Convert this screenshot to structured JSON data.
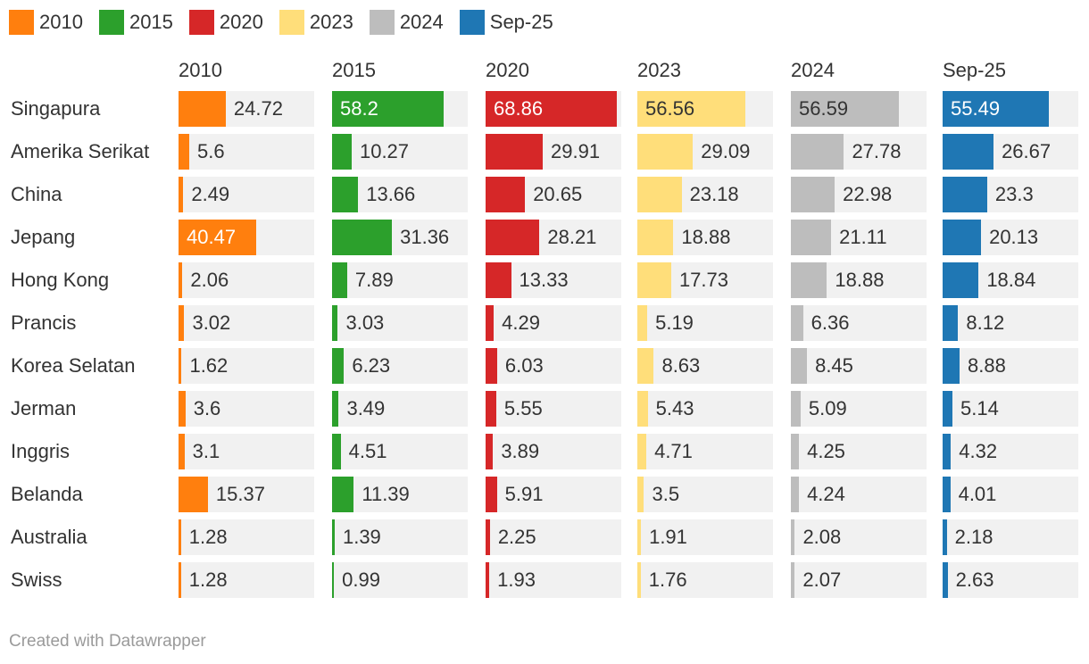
{
  "legend": [
    {
      "label": "2010",
      "color": "#ff7f0e"
    },
    {
      "label": "2015",
      "color": "#2ca02c"
    },
    {
      "label": "2020",
      "color": "#d62728"
    },
    {
      "label": "2023",
      "color": "#ffde7a"
    },
    {
      "label": "2024",
      "color": "#bdbdbd"
    },
    {
      "label": "Sep-25",
      "color": "#1f77b4"
    }
  ],
  "footer": {
    "credit": "Created with Datawrapper"
  },
  "chart_data": {
    "type": "bar",
    "layout": "small-multiples-horizontal",
    "title": "",
    "xlim": [
      0,
      80
    ],
    "categories": [
      "Singapura",
      "Amerika Serikat",
      "China",
      "Jepang",
      "Hong Kong",
      "Prancis",
      "Korea Selatan",
      "Jerman",
      "Inggris",
      "Belanda",
      "Australia",
      "Swiss"
    ],
    "series": [
      {
        "name": "2010",
        "color": "#ff7f0e",
        "label_inside_color": "#ffffff",
        "values": [
          24.72,
          5.6,
          2.49,
          40.47,
          2.06,
          3.02,
          1.62,
          3.6,
          3.1,
          15.37,
          1.28,
          1.28
        ]
      },
      {
        "name": "2015",
        "color": "#2ca02c",
        "label_inside_color": "#ffffff",
        "values": [
          58.2,
          10.27,
          13.66,
          31.36,
          7.89,
          3.03,
          6.23,
          3.49,
          4.51,
          11.39,
          1.39,
          0.99
        ]
      },
      {
        "name": "2020",
        "color": "#d62728",
        "label_inside_color": "#ffffff",
        "values": [
          68.86,
          29.91,
          20.65,
          28.21,
          13.33,
          4.29,
          6.03,
          5.55,
          3.89,
          5.91,
          2.25,
          1.93
        ]
      },
      {
        "name": "2023",
        "color": "#ffde7a",
        "label_inside_color": "#333333",
        "values": [
          56.56,
          29.09,
          23.18,
          18.88,
          17.73,
          5.19,
          8.63,
          5.43,
          4.71,
          3.5,
          1.91,
          1.76
        ]
      },
      {
        "name": "2024",
        "color": "#bdbdbd",
        "label_inside_color": "#333333",
        "values": [
          56.59,
          27.78,
          22.98,
          21.11,
          18.88,
          6.36,
          8.45,
          5.09,
          4.25,
          4.24,
          2.08,
          2.07
        ]
      },
      {
        "name": "Sep-25",
        "color": "#1f77b4",
        "label_inside_color": "#ffffff",
        "values": [
          55.49,
          26.67,
          23.3,
          20.13,
          18.84,
          8.12,
          8.88,
          5.14,
          4.32,
          4.01,
          2.18,
          2.63
        ]
      }
    ]
  }
}
